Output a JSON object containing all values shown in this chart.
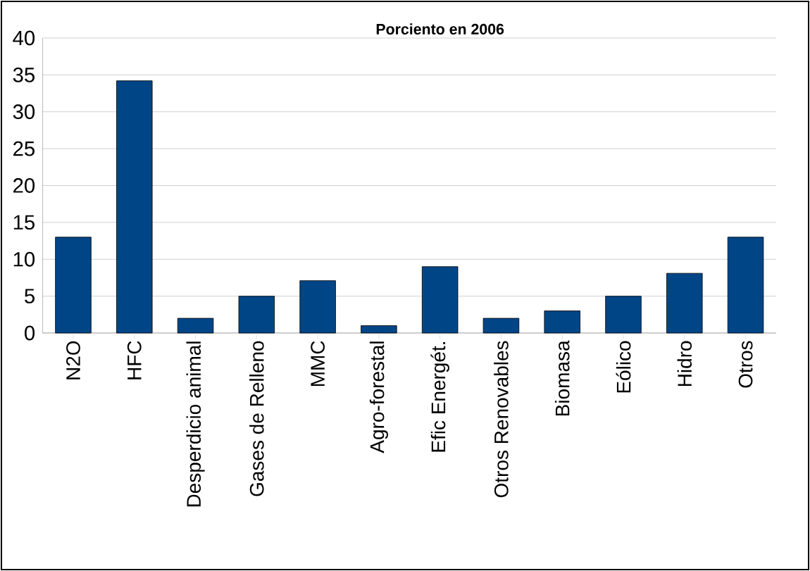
{
  "chart_data": {
    "type": "bar",
    "title": "Porciento en 2006",
    "categories": [
      "N2O",
      "HFC",
      "Desperdicio animal",
      "Gases de Relleno",
      "MMC",
      "Agro-forestal",
      "Efic Energét.",
      "Otros Renovables",
      "Biomasa",
      "Eólico",
      "Hidro",
      "Otros"
    ],
    "values": [
      13,
      34.2,
      2,
      5,
      7.1,
      1,
      9,
      2,
      3,
      5,
      8.1,
      13
    ],
    "color": "#004586",
    "ylim": [
      0,
      40
    ],
    "yticks": [
      0,
      5,
      10,
      15,
      20,
      25,
      30,
      35,
      40
    ],
    "grid": "y"
  }
}
